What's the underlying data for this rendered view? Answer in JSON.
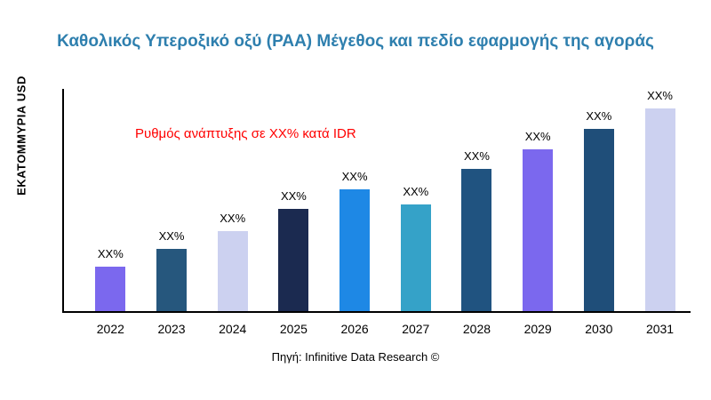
{
  "chart_data": {
    "type": "bar",
    "title": "Καθολικός Υπεροξικό οξύ (PAA) Μέγεθος και πεδίο εφαρμογής της αγοράς",
    "ylabel": "ΕΚΑΤΟΜΜΥΡΙΑ USD",
    "xlabel": "",
    "annotation": "Ρυθμός ανάπτυξης σε XX% κατά IDR",
    "source": "Πηγή: Infinitive Data Research ©",
    "categories": [
      "2022",
      "2023",
      "2024",
      "2025",
      "2026",
      "2027",
      "2028",
      "2029",
      "2030",
      "2031"
    ],
    "values": [
      50,
      70,
      90,
      115,
      137,
      120,
      160,
      182,
      205,
      228
    ],
    "bar_labels": [
      "XX%",
      "XX%",
      "XX%",
      "XX%",
      "XX%",
      "XX%",
      "XX%",
      "XX%",
      "XX%",
      "XX%"
    ],
    "colors": [
      "#7b68ee",
      "#26577d",
      "#ccd1f0",
      "#1b2a50",
      "#1e88e5",
      "#35a2c8",
      "#205380",
      "#7b68ee",
      "#1f4e79",
      "#ccd1f0"
    ],
    "ylim": [
      0,
      250
    ],
    "grid": false,
    "legend": "none",
    "value_unit": "relative-height-px",
    "accent_colors": {
      "title": "#2e7fae",
      "annotation": "#ff0000",
      "axis": "#000000"
    }
  }
}
